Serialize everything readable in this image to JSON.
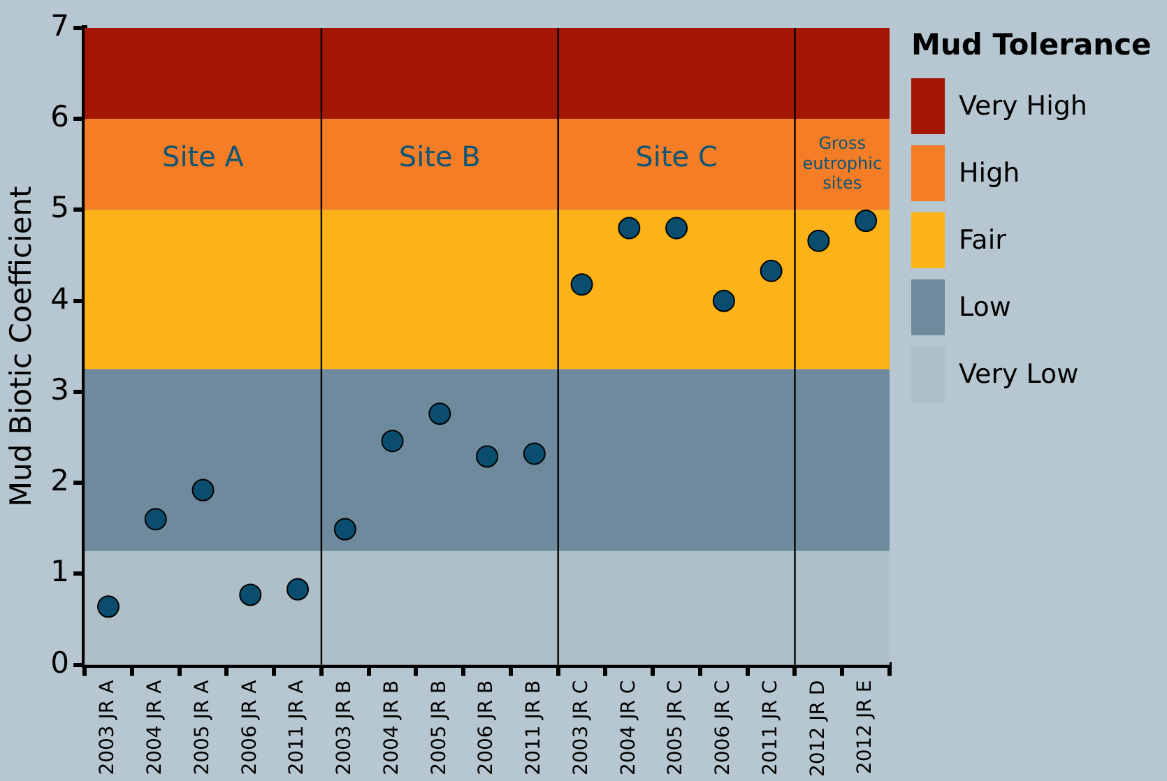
{
  "chart_data": {
    "type": "scatter",
    "ylabel": "Mud Biotic Coefficient",
    "legend_title": "Mud Tolerance",
    "legend": "right",
    "categories": [
      "2003 JR A",
      "2004 JR A",
      "2005 JR A",
      "2006 JR A",
      "2011 JR A",
      "2003 JR B",
      "2004 JR B",
      "2005 JR B",
      "2006 JR B",
      "2011 JR B",
      "2003 JR C",
      "2004 JR C",
      "2005 JR C",
      "2006 JR C",
      "2011 JR C",
      "2012 JR D",
      "2012 JR E"
    ],
    "series": [
      {
        "color": "#0b4d6e",
        "values": [
          0.64,
          1.6,
          1.92,
          0.77,
          0.83,
          1.49,
          2.46,
          2.76,
          2.29,
          2.32,
          4.18,
          4.8,
          4.8,
          4.0,
          4.33,
          4.66,
          4.88
        ]
      }
    ],
    "marker": "circle",
    "grid": false,
    "ylim": [
      0,
      7
    ],
    "yticks": [
      0,
      1,
      2,
      3,
      4,
      5,
      6,
      7
    ],
    "bands": [
      {
        "axis": "y",
        "from": 6,
        "to": 7,
        "label": "Very High",
        "color": "#a31603"
      },
      {
        "axis": "y",
        "from": 5,
        "to": 6,
        "label": "High",
        "color": "#f47d26"
      },
      {
        "axis": "y",
        "from": 3.25,
        "to": 5,
        "label": "Fair",
        "color": "#fcb319"
      },
      {
        "axis": "y",
        "from": 1.25,
        "to": 3.25,
        "label": "Low",
        "color": "#6e8a9c"
      },
      {
        "axis": "y",
        "from": 0,
        "to": 1.25,
        "label": "Very Low",
        "color": "#afbfc8"
      }
    ],
    "annotations": [
      "Site A",
      "Site B",
      "Site C",
      "Gross eutrophic sites"
    ]
  }
}
